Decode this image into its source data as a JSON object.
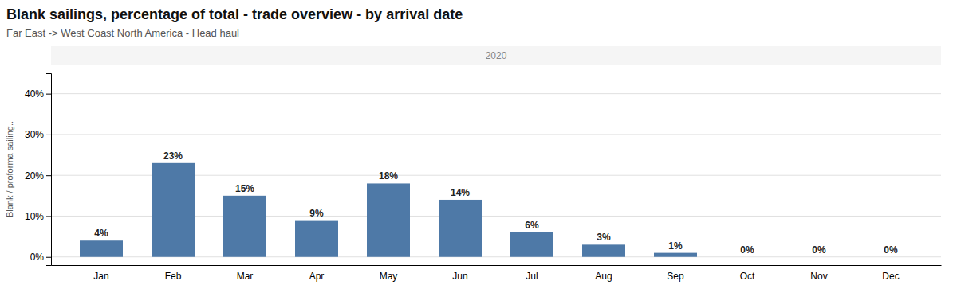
{
  "chart_data": {
    "type": "bar",
    "title": "Blank sailings, percentage of total - trade overview - by arrival date",
    "subtitle": "Far East -> West Coast North America - Head haul",
    "annotations": [
      "2020"
    ],
    "y_label": "Blank / proforma sailing..",
    "categories": [
      "Jan",
      "Feb",
      "Mar",
      "Apr",
      "May",
      "Jun",
      "Jul",
      "Aug",
      "Sep",
      "Oct",
      "Nov",
      "Dec"
    ],
    "values": [
      4,
      23,
      15,
      9,
      18,
      14,
      6,
      3,
      1,
      0,
      0,
      0
    ],
    "value_labels": [
      "4%",
      "23%",
      "15%",
      "9%",
      "18%",
      "14%",
      "6%",
      "3%",
      "1%",
      "0%",
      "0%",
      "0%"
    ],
    "data_labels": true,
    "ylim": [
      -2,
      45
    ],
    "yticks": [
      {
        "value": 0,
        "label": "0%"
      },
      {
        "value": 10,
        "label": "10%"
      },
      {
        "value": 20,
        "label": "20%"
      },
      {
        "value": 30,
        "label": "30%"
      },
      {
        "value": 40,
        "label": "40%"
      }
    ],
    "grid": true
  }
}
